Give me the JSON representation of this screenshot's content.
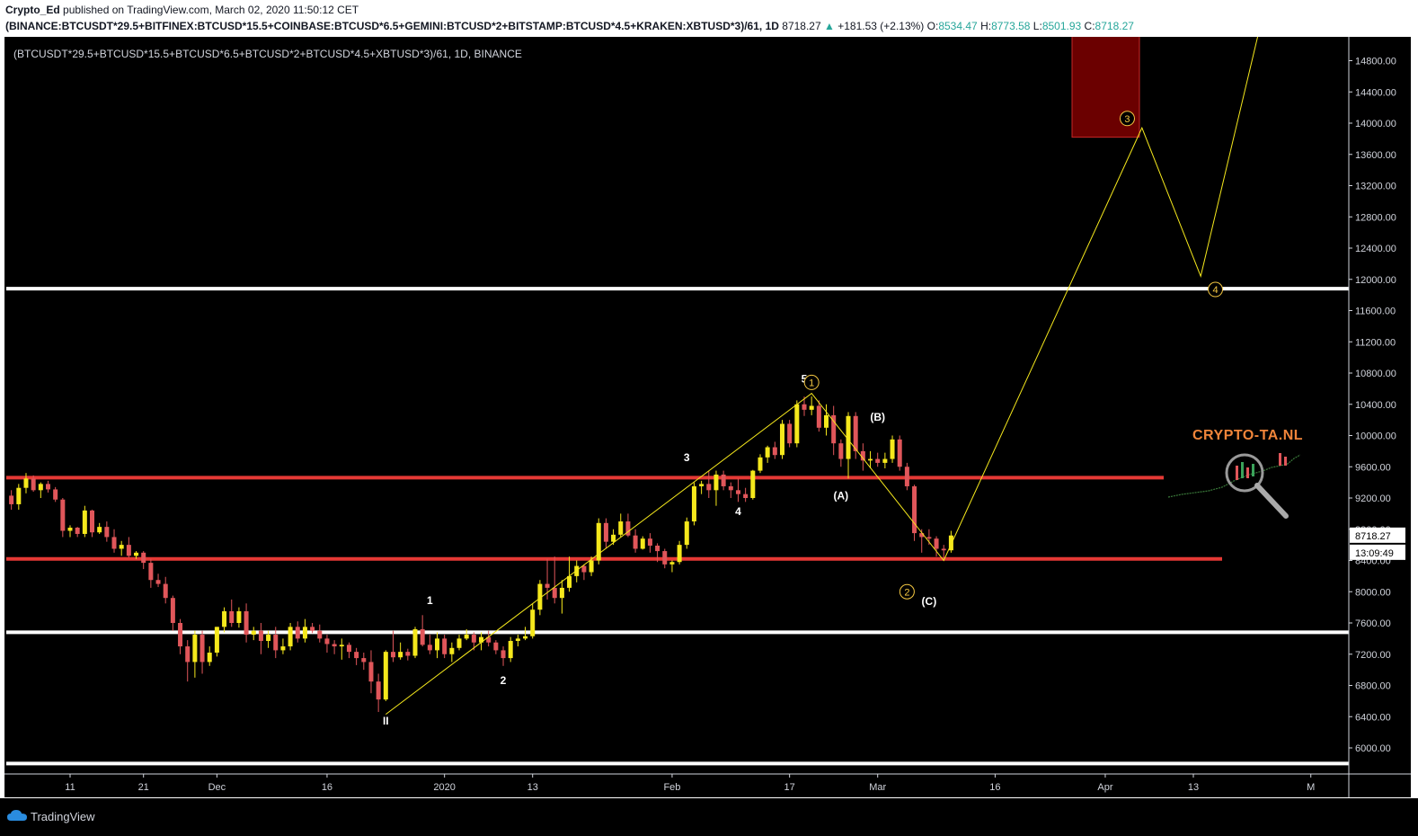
{
  "header": {
    "author": "Crypto_Ed",
    "published_text": "published on TradingView.com, March 02, 2020 11:50:12 CET",
    "symbol_full": "(BINANCE:BTCUSDT*29.5+BITFINEX:BTCUSD*15.5+COINBASE:BTCUSD*6.5+GEMINI:BTCUSD*2+BITSTAMP:BTCUSD*4.5+KRAKEN:XBTUSD*3)/61, 1D",
    "last": "8718.27",
    "change": "+181.53 (+2.13%)",
    "o_label": "O:",
    "o_value": "8534.47",
    "h_label": "H:",
    "h_value": "8773.58",
    "l_label": "L:",
    "l_value": "8501.93",
    "c_label": "C:",
    "c_value": "8718.27"
  },
  "chart_legend": "(BTCUSDT*29.5+BTCUSD*15.5+BTCUSD*6.5+BTCUSD*2+BTCUSD*4.5+XBTUSD*3)/61, 1D, BINANCE",
  "price_labels": {
    "last_price": "8718.27",
    "countdown": "13:09:49"
  },
  "watermark_text": "CRYPTO-TA.NL",
  "footer": {
    "brand": "TradingView"
  },
  "colors": {
    "background": "#000000",
    "bull": "#f5e81c",
    "bear": "#e0565a",
    "support_red": "#e53935",
    "level_white": "#ffffff",
    "wave_line": "#f5e81c",
    "target_box": "#6b0000"
  },
  "chart_data": {
    "type": "candlestick",
    "interval": "1D",
    "y_axis": {
      "ticks": [
        "14800.00",
        "14400.00",
        "14000.00",
        "13600.00",
        "13200.00",
        "12800.00",
        "12400.00",
        "12000.00",
        "11600.00",
        "11200.00",
        "10800.00",
        "10400.00",
        "10000.00",
        "9600.00",
        "9200.00",
        "8800.00",
        "8400.00",
        "8000.00",
        "7600.00",
        "7200.00",
        "6800.00",
        "6400.00",
        "6000.00"
      ],
      "ylim": [
        5800,
        15200
      ]
    },
    "x_axis": {
      "ticks": [
        "11",
        "21",
        "Dec",
        "16",
        "2020",
        "13",
        "Feb",
        "17",
        "Mar",
        "16",
        "Apr",
        "13",
        "M"
      ],
      "tick_days": [
        0,
        10,
        20,
        35,
        51,
        63,
        82,
        98,
        110,
        126,
        141,
        153,
        169
      ]
    },
    "day0": "2019-11-11",
    "candles": [
      [
        -8,
        9230,
        9300,
        9050,
        9120
      ],
      [
        -7,
        9120,
        9380,
        9050,
        9330
      ],
      [
        -6,
        9330,
        9520,
        9260,
        9450
      ],
      [
        -5,
        9450,
        9490,
        9280,
        9300
      ],
      [
        -4,
        9300,
        9400,
        9200,
        9380
      ],
      [
        -3,
        9380,
        9420,
        9270,
        9310
      ],
      [
        -2,
        9310,
        9340,
        9150,
        9180
      ],
      [
        -1,
        9180,
        9200,
        8700,
        8780
      ],
      [
        0,
        8780,
        8850,
        8700,
        8820
      ],
      [
        1,
        8820,
        8830,
        8700,
        8740
      ],
      [
        2,
        8740,
        9100,
        8700,
        9040
      ],
      [
        3,
        9040,
        9050,
        8700,
        8760
      ],
      [
        4,
        8760,
        8880,
        8740,
        8830
      ],
      [
        5,
        8830,
        8900,
        8640,
        8700
      ],
      [
        6,
        8700,
        8800,
        8500,
        8550
      ],
      [
        7,
        8550,
        8650,
        8460,
        8600
      ],
      [
        8,
        8600,
        8700,
        8440,
        8460
      ],
      [
        9,
        8460,
        8520,
        8420,
        8500
      ],
      [
        10,
        8500,
        8520,
        8290,
        8370
      ],
      [
        11,
        8370,
        8420,
        8050,
        8150
      ],
      [
        12,
        8150,
        8230,
        8060,
        8100
      ],
      [
        13,
        8100,
        8190,
        7850,
        7920
      ],
      [
        14,
        7920,
        7950,
        7500,
        7600
      ],
      [
        15,
        7600,
        7650,
        7200,
        7300
      ],
      [
        16,
        7300,
        7380,
        6850,
        7100
      ],
      [
        17,
        7100,
        7500,
        6900,
        7450
      ],
      [
        18,
        7450,
        7500,
        6950,
        7100
      ],
      [
        19,
        7100,
        7300,
        7050,
        7220
      ],
      [
        20,
        7220,
        7550,
        7170,
        7550
      ],
      [
        21,
        7550,
        7800,
        7480,
        7750
      ],
      [
        22,
        7750,
        7900,
        7550,
        7600
      ],
      [
        23,
        7600,
        7800,
        7540,
        7750
      ],
      [
        24,
        7750,
        7850,
        7350,
        7450
      ],
      [
        25,
        7450,
        7550,
        7380,
        7500
      ],
      [
        26,
        7500,
        7600,
        7200,
        7370
      ],
      [
        27,
        7370,
        7500,
        7280,
        7450
      ],
      [
        28,
        7450,
        7550,
        7150,
        7250
      ],
      [
        29,
        7250,
        7400,
        7200,
        7300
      ],
      [
        30,
        7300,
        7600,
        7250,
        7550
      ],
      [
        31,
        7550,
        7620,
        7350,
        7400
      ],
      [
        32,
        7400,
        7650,
        7350,
        7550
      ],
      [
        33,
        7550,
        7600,
        7470,
        7500
      ],
      [
        34,
        7500,
        7580,
        7350,
        7400
      ],
      [
        35,
        7400,
        7450,
        7220,
        7330
      ],
      [
        36,
        7330,
        7380,
        7200,
        7300
      ],
      [
        37,
        7300,
        7400,
        7130,
        7320
      ],
      [
        38,
        7320,
        7350,
        7150,
        7230
      ],
      [
        39,
        7230,
        7280,
        7060,
        7150
      ],
      [
        40,
        7150,
        7220,
        7000,
        7100
      ],
      [
        41,
        7100,
        7250,
        6700,
        6850
      ],
      [
        42,
        6850,
        6950,
        6460,
        6620
      ],
      [
        43,
        6620,
        7250,
        6600,
        7230
      ],
      [
        44,
        7230,
        7500,
        7100,
        7160
      ],
      [
        45,
        7160,
        7350,
        7130,
        7230
      ],
      [
        46,
        7230,
        7270,
        7120,
        7180
      ],
      [
        47,
        7180,
        7550,
        7150,
        7520
      ],
      [
        48,
        7520,
        7700,
        7300,
        7320
      ],
      [
        49,
        7320,
        7450,
        7200,
        7250
      ],
      [
        50,
        7250,
        7480,
        7150,
        7400
      ],
      [
        51,
        7400,
        7450,
        7150,
        7200
      ],
      [
        52,
        7200,
        7350,
        7100,
        7280
      ],
      [
        53,
        7280,
        7450,
        7250,
        7400
      ],
      [
        54,
        7400,
        7520,
        7380,
        7450
      ],
      [
        55,
        7450,
        7480,
        7250,
        7350
      ],
      [
        56,
        7350,
        7480,
        7250,
        7420
      ],
      [
        57,
        7420,
        7500,
        7300,
        7350
      ],
      [
        58,
        7350,
        7380,
        7200,
        7250
      ],
      [
        59,
        7250,
        7300,
        7050,
        7150
      ],
      [
        60,
        7150,
        7420,
        7100,
        7370
      ],
      [
        61,
        7370,
        7450,
        7300,
        7400
      ],
      [
        62,
        7400,
        7550,
        7380,
        7430
      ],
      [
        63,
        7430,
        7850,
        7400,
        7770
      ],
      [
        64,
        7770,
        8150,
        7700,
        8100
      ],
      [
        65,
        8100,
        8420,
        7900,
        8050
      ],
      [
        66,
        8050,
        8450,
        7850,
        7920
      ],
      [
        67,
        7920,
        8150,
        7720,
        8050
      ],
      [
        68,
        8050,
        8450,
        8000,
        8200
      ],
      [
        69,
        8200,
        8400,
        8120,
        8330
      ],
      [
        70,
        8330,
        8350,
        8150,
        8250
      ],
      [
        71,
        8250,
        8450,
        8200,
        8400
      ],
      [
        72,
        8400,
        8940,
        8350,
        8880
      ],
      [
        73,
        8880,
        8940,
        8550,
        8640
      ],
      [
        74,
        8640,
        8800,
        8600,
        8730
      ],
      [
        75,
        8730,
        9000,
        8700,
        8900
      ],
      [
        76,
        8900,
        9000,
        8700,
        8720
      ],
      [
        77,
        8720,
        8800,
        8500,
        8550
      ],
      [
        78,
        8550,
        8710,
        8540,
        8680
      ],
      [
        79,
        8680,
        8750,
        8500,
        8590
      ],
      [
        80,
        8590,
        8620,
        8380,
        8520
      ],
      [
        81,
        8520,
        8550,
        8300,
        8350
      ],
      [
        82,
        8350,
        8400,
        8250,
        8380
      ],
      [
        83,
        8380,
        8650,
        8350,
        8600
      ],
      [
        84,
        8600,
        8950,
        8550,
        8900
      ],
      [
        85,
        8900,
        9400,
        8850,
        9350
      ],
      [
        86,
        9350,
        9420,
        9250,
        9380
      ],
      [
        87,
        9380,
        9550,
        9200,
        9300
      ],
      [
        88,
        9300,
        9550,
        9100,
        9500
      ],
      [
        89,
        9500,
        9550,
        9300,
        9350
      ],
      [
        90,
        9350,
        9400,
        9200,
        9300
      ],
      [
        91,
        9300,
        9450,
        9150,
        9250
      ],
      [
        92,
        9250,
        9330,
        9150,
        9200
      ],
      [
        93,
        9200,
        9560,
        9180,
        9550
      ],
      [
        94,
        9550,
        9760,
        9520,
        9720
      ],
      [
        95,
        9720,
        9870,
        9650,
        9850
      ],
      [
        96,
        9850,
        9920,
        9700,
        9750
      ],
      [
        97,
        9750,
        10200,
        9700,
        10150
      ],
      [
        98,
        10150,
        10200,
        9850,
        9900
      ],
      [
        99,
        9900,
        10450,
        9850,
        10400
      ],
      [
        100,
        10400,
        10500,
        10250,
        10330
      ],
      [
        101,
        10330,
        10500,
        10260,
        10380
      ],
      [
        102,
        10380,
        10450,
        10050,
        10100
      ],
      [
        103,
        10100,
        10400,
        10000,
        10260
      ],
      [
        104,
        10260,
        10380,
        9750,
        9900
      ],
      [
        105,
        9900,
        9950,
        9600,
        9700
      ],
      [
        106,
        9700,
        10300,
        9450,
        10250
      ],
      [
        107,
        10250,
        10300,
        9700,
        9800
      ],
      [
        108,
        9800,
        9900,
        9550,
        9680
      ],
      [
        109,
        9680,
        9800,
        9580,
        9700
      ],
      [
        110,
        9700,
        9780,
        9600,
        9650
      ],
      [
        111,
        9650,
        9780,
        9580,
        9700
      ],
      [
        112,
        9700,
        10000,
        9650,
        9950
      ],
      [
        113,
        9950,
        10000,
        9550,
        9600
      ],
      [
        114,
        9600,
        9650,
        9300,
        9350
      ],
      [
        115,
        9350,
        9370,
        8650,
        8750
      ],
      [
        116,
        8750,
        8800,
        8500,
        8700
      ],
      [
        117,
        8700,
        8800,
        8600,
        8680
      ],
      [
        118,
        8680,
        8710,
        8450,
        8550
      ],
      [
        119,
        8550,
        8600,
        8400,
        8530
      ],
      [
        120,
        8530,
        8780,
        8500,
        8720
      ]
    ],
    "horizontal_levels": [
      {
        "price": 11880,
        "color": "white"
      },
      {
        "price": 9460,
        "color": "red"
      },
      {
        "price": 8420,
        "color": "red"
      },
      {
        "price": 7480,
        "color": "white"
      },
      {
        "price": 5800,
        "color": "white"
      }
    ],
    "target_zone": {
      "price_top": 15200,
      "price_bottom": 13820
    },
    "wave_path": [
      {
        "day": 43,
        "price": 6430
      },
      {
        "day": 101,
        "price": 10540
      },
      {
        "day": 119,
        "price": 8400
      },
      {
        "day": 146,
        "price": 13940
      },
      {
        "day": 154,
        "price": 12040
      },
      {
        "day": 162,
        "price": 15200
      }
    ],
    "wave_labels": [
      {
        "text": "II",
        "day": 43,
        "price": 6300
      },
      {
        "text": "1",
        "day": 49,
        "price": 7840
      },
      {
        "text": "2",
        "day": 59,
        "price": 6820
      },
      {
        "text": "3",
        "day": 84,
        "price": 9670
      },
      {
        "text": "4",
        "day": 91,
        "price": 8980
      },
      {
        "text": "5",
        "day": 100,
        "price": 10680
      },
      {
        "text": "(A)",
        "day": 105,
        "price": 9180
      },
      {
        "text": "(B)",
        "day": 110,
        "price": 10190
      },
      {
        "text": "(C)",
        "day": 117,
        "price": 7830
      }
    ],
    "circled_labels": [
      {
        "text": "1",
        "day": 101,
        "price": 10680
      },
      {
        "text": "2",
        "day": 114,
        "price": 8000
      },
      {
        "text": "3",
        "day": 144,
        "price": 14060
      },
      {
        "text": "4",
        "day": 156,
        "price": 11870
      }
    ]
  }
}
